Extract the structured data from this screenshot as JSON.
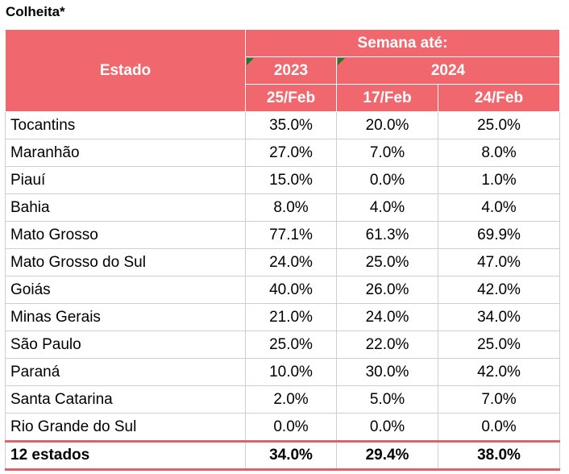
{
  "title": "Colheita*",
  "header": {
    "estado": "Estado",
    "semana": "Semana até:",
    "year_2023": "2023",
    "year_2024": "2024",
    "dates": [
      "25/Feb",
      "17/Feb",
      "24/Feb"
    ]
  },
  "rows": [
    {
      "state": "Tocantins",
      "v": [
        "35.0%",
        "20.0%",
        "25.0%"
      ]
    },
    {
      "state": "Maranhão",
      "v": [
        "27.0%",
        "7.0%",
        "8.0%"
      ]
    },
    {
      "state": "Piauí",
      "v": [
        "15.0%",
        "0.0%",
        "1.0%"
      ]
    },
    {
      "state": "Bahia",
      "v": [
        "8.0%",
        "4.0%",
        "4.0%"
      ]
    },
    {
      "state": "Mato Grosso",
      "v": [
        "77.1%",
        "61.3%",
        "69.9%"
      ]
    },
    {
      "state": "Mato Grosso do Sul",
      "v": [
        "24.0%",
        "25.0%",
        "47.0%"
      ]
    },
    {
      "state": "Goiás",
      "v": [
        "40.0%",
        "26.0%",
        "42.0%"
      ]
    },
    {
      "state": "Minas Gerais",
      "v": [
        "21.0%",
        "24.0%",
        "34.0%"
      ]
    },
    {
      "state": "São Paulo",
      "v": [
        "25.0%",
        "22.0%",
        "25.0%"
      ]
    },
    {
      "state": "Paraná",
      "v": [
        "10.0%",
        "30.0%",
        "42.0%"
      ]
    },
    {
      "state": "Santa Catarina",
      "v": [
        "2.0%",
        "5.0%",
        "7.0%"
      ]
    },
    {
      "state": "Rio Grande do Sul",
      "v": [
        "0.0%",
        "0.0%",
        "0.0%"
      ]
    }
  ],
  "total": {
    "state": "12 estados",
    "v": [
      "34.0%",
      "29.4%",
      "38.0%"
    ]
  },
  "colors": {
    "header_bg": "#f0686e",
    "marker": "#1f7a2b"
  }
}
